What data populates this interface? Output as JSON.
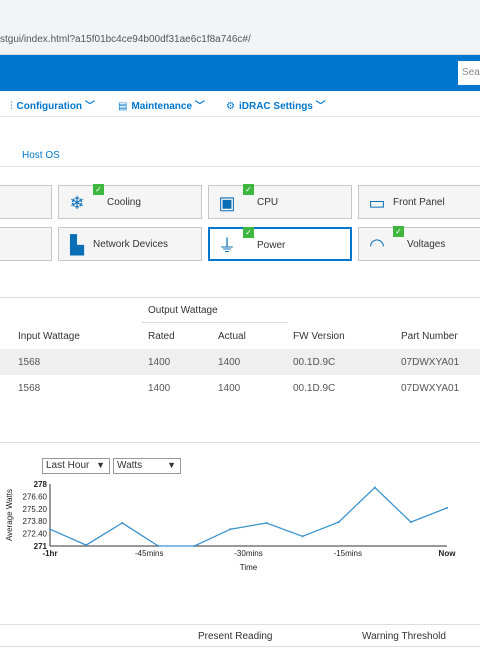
{
  "browser": {
    "url": "stgui/index.html?a15f01bc4ce94b00df31ae6c1f8a746c#/"
  },
  "header": {
    "search_placeholder": "Sea"
  },
  "menu": [
    {
      "label": "Configuration",
      "icon": "sliders-icon"
    },
    {
      "label": "Maintenance",
      "icon": "maintenance-icon"
    },
    {
      "label": "iDRAC Settings",
      "icon": "gears-icon"
    }
  ],
  "tabs": {
    "host_os": "Host OS"
  },
  "tiles": {
    "cooling": "Cooling",
    "cpu": "CPU",
    "front_panel": "Front Panel",
    "network_devices": "Network Devices",
    "power": "Power",
    "voltages": "Voltages"
  },
  "psu_table": {
    "group_header": "Output Wattage",
    "headers": [
      "Input Wattage",
      "Rated",
      "Actual",
      "FW Version",
      "Part Number"
    ],
    "rows": [
      [
        "1568",
        "1400",
        "1400",
        "00.1D.9C",
        "07DWXYA01"
      ],
      [
        "1568",
        "1400",
        "1400",
        "00.1D.9C",
        "07DWXYA01"
      ]
    ]
  },
  "chart_controls": {
    "range": "Last Hour",
    "unit": "Watts"
  },
  "chart_data": {
    "type": "line",
    "xlabel": "Time",
    "ylabel": "Average Watts",
    "x_ticks": [
      "-1hr",
      "-45mins",
      "-30mins",
      "-15mins",
      "Now"
    ],
    "y_ticks": [
      "278",
      "276.60",
      "275.20",
      "273.80",
      "272.40",
      "271"
    ],
    "ylim": [
      271,
      278
    ],
    "x": [
      0,
      1,
      2,
      3,
      4,
      5,
      6,
      7,
      8,
      9,
      10,
      11
    ],
    "values": [
      272.9,
      271.1,
      273.6,
      271.0,
      271.0,
      272.9,
      273.6,
      272.1,
      273.7,
      277.6,
      273.7,
      275.3
    ],
    "color": "#3a93cf",
    "grid": false
  },
  "bottom_table": {
    "headers": [
      "Present Reading",
      "Warning Threshold"
    ]
  }
}
